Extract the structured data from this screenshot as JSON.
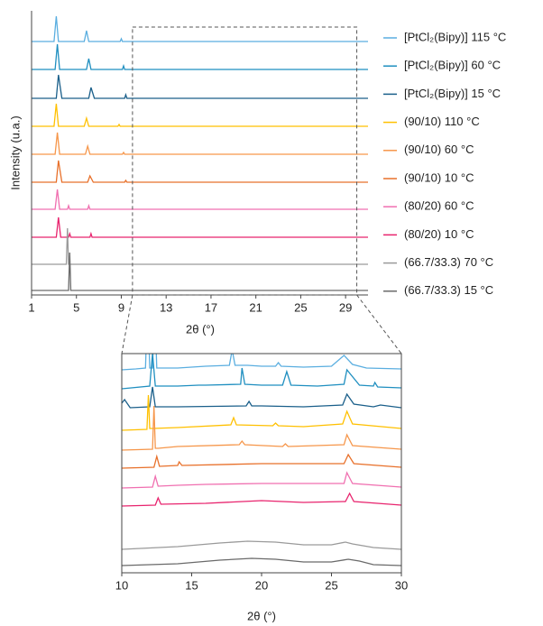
{
  "chart_data": [
    {
      "type": "line",
      "x_label": "2θ (°)",
      "y_label": "Intensity (u.a.)",
      "xlim": [
        1,
        31
      ],
      "xticks": [
        1,
        5,
        9,
        13,
        17,
        21,
        25,
        29
      ],
      "series": [
        {
          "name": "[PtCl₂(Bipy)] 115 °C",
          "color": "#5aaee0",
          "x": [
            1,
            3.0,
            3.2,
            3.4,
            5.7,
            5.9,
            6.1,
            8.9,
            9.0,
            9.1,
            31
          ],
          "values": [
            0,
            0,
            28,
            0,
            0,
            12,
            0,
            0,
            3,
            0,
            0
          ]
        },
        {
          "name": "[PtCl₂(Bipy)] 60 °C",
          "color": "#1f8fc0",
          "x": [
            1,
            3.1,
            3.3,
            3.5,
            5.9,
            6.1,
            6.3,
            9.1,
            9.2,
            9.3,
            31
          ],
          "values": [
            0,
            0,
            28,
            0,
            0,
            12,
            0,
            0,
            4,
            0,
            0
          ]
        },
        {
          "name": "[PtCl₂(Bipy)] 15 °C",
          "color": "#1a5f8a",
          "x": [
            1,
            3.2,
            3.4,
            3.7,
            6.1,
            6.3,
            6.6,
            9.3,
            9.4,
            9.5,
            31
          ],
          "values": [
            0,
            0,
            26,
            0,
            0,
            12,
            0,
            0,
            4,
            0,
            0
          ]
        },
        {
          "name": "(90/10) 110 °C",
          "color": "#ffc000",
          "x": [
            1,
            3.0,
            3.2,
            3.4,
            5.7,
            5.9,
            6.1,
            8.7,
            8.8,
            8.9,
            31
          ],
          "values": [
            0,
            0,
            25,
            0,
            0,
            9,
            0,
            0,
            2,
            0,
            0
          ]
        },
        {
          "name": "(90/10) 60 °C",
          "color": "#f6964a",
          "x": [
            1,
            3.1,
            3.3,
            3.5,
            5.8,
            6.0,
            6.2,
            9.1,
            9.2,
            9.3,
            31
          ],
          "values": [
            0,
            0,
            24,
            0,
            0,
            9,
            0,
            0,
            2,
            0,
            0
          ]
        },
        {
          "name": "(90/10) 10 °C",
          "color": "#e8702a",
          "x": [
            1,
            3.2,
            3.4,
            3.7,
            6.0,
            6.2,
            6.5,
            9.3,
            9.4,
            9.5,
            31
          ],
          "values": [
            0,
            0,
            24,
            0,
            0,
            7,
            0,
            0,
            2,
            0,
            0
          ]
        },
        {
          "name": "(80/20) 60 °C",
          "color": "#f06fb0",
          "x": [
            1,
            3.1,
            3.3,
            3.5,
            4.2,
            4.3,
            4.4,
            6.0,
            6.1,
            6.2,
            31
          ],
          "values": [
            0,
            0,
            22,
            0,
            0,
            4,
            0,
            0,
            4,
            0,
            0
          ]
        },
        {
          "name": "(80/20) 10 °C",
          "color": "#e8246e",
          "x": [
            1,
            3.2,
            3.4,
            3.6,
            4.3,
            4.4,
            4.5,
            6.2,
            6.3,
            6.4,
            31
          ],
          "values": [
            0,
            0,
            22,
            0,
            0,
            4,
            0,
            0,
            4,
            0,
            0
          ]
        },
        {
          "name": "(66.7/33.3) 70 °C",
          "color": "#9a9a9a",
          "x": [
            1,
            4.1,
            4.2,
            4.3,
            31
          ],
          "values": [
            0,
            0,
            40,
            0,
            0
          ]
        },
        {
          "name": "(66.7/33.3) 15 °C",
          "color": "#6a6a6a",
          "x": [
            1,
            4.3,
            4.4,
            4.5,
            31
          ],
          "values": [
            0,
            0,
            42,
            0,
            0
          ]
        }
      ]
    },
    {
      "type": "line",
      "x_label": "2θ (°)",
      "xlim": [
        10,
        30
      ],
      "xticks": [
        10,
        15,
        20,
        25,
        30
      ],
      "series": [
        {
          "color": "#5aaee0",
          "x": [
            10,
            11,
            11.7,
            11.85,
            12,
            12.2,
            12.35,
            12.5,
            14,
            15,
            16,
            17.7,
            17.9,
            18.1,
            19,
            20,
            21,
            21.2,
            21.4,
            23,
            25,
            25.9,
            26.5,
            27.5,
            30
          ],
          "values": [
            2,
            3,
            4,
            80,
            4,
            4,
            80,
            4,
            4,
            5,
            6,
            7,
            24,
            7,
            7,
            6,
            6,
            10,
            6,
            5,
            6,
            18,
            8,
            4,
            3
          ]
        },
        {
          "color": "#1f8fc0",
          "x": [
            10,
            12,
            12.2,
            12.4,
            14,
            15.5,
            16,
            18.5,
            18.6,
            18.8,
            20,
            21.5,
            21.8,
            22.1,
            24,
            25.9,
            26.1,
            27,
            28,
            28.1,
            28.3,
            30
          ],
          "values": [
            1,
            4,
            40,
            4,
            4,
            5,
            5,
            6,
            24,
            6,
            5,
            5,
            20,
            5,
            4,
            6,
            22,
            5,
            4,
            8,
            3,
            2
          ]
        },
        {
          "color": "#1a5f8a",
          "x": [
            10,
            10.2,
            10.6,
            12,
            12.2,
            12.4,
            14,
            18.9,
            19.1,
            19.3,
            20,
            23,
            25.8,
            26.1,
            26.6,
            28,
            28.5,
            30
          ],
          "values": [
            8,
            12,
            3,
            4,
            26,
            4,
            4,
            5,
            10,
            5,
            5,
            4,
            6,
            18,
            7,
            4,
            6,
            3
          ]
        },
        {
          "color": "#ffc000",
          "x": [
            10,
            11.8,
            11.9,
            12,
            12.2,
            14,
            17.8,
            18,
            18.2,
            20.8,
            21,
            21.2,
            23,
            25.8,
            26.1,
            26.5,
            30
          ],
          "values": [
            1,
            2,
            40,
            3,
            3,
            4,
            7,
            15,
            7,
            6,
            9,
            6,
            5,
            8,
            22,
            8,
            3
          ]
        },
        {
          "color": "#f6964a",
          "x": [
            10,
            12.2,
            12.3,
            12.4,
            12.6,
            14,
            18.4,
            18.6,
            18.8,
            21.5,
            21.7,
            21.9,
            25.9,
            26.1,
            26.5,
            30
          ],
          "values": [
            1,
            2,
            50,
            3,
            3,
            5,
            7,
            11,
            7,
            5,
            8,
            5,
            7,
            18,
            6,
            2
          ]
        },
        {
          "color": "#e8702a",
          "x": [
            10,
            12.3,
            12.5,
            12.7,
            14,
            14.1,
            14.3,
            20,
            25.9,
            26.2,
            26.6,
            30
          ],
          "values": [
            1,
            2,
            14,
            3,
            4,
            8,
            4,
            6,
            6,
            16,
            6,
            2
          ]
        },
        {
          "color": "#f06fb0",
          "x": [
            10,
            12.2,
            12.4,
            12.6,
            14,
            16,
            20,
            25.9,
            26.1,
            26.5,
            30
          ],
          "values": [
            1,
            2,
            14,
            3,
            4,
            5,
            6,
            6,
            18,
            6,
            2
          ]
        },
        {
          "color": "#e8246e",
          "x": [
            10,
            12.4,
            12.6,
            12.8,
            16,
            20,
            23,
            26,
            26.3,
            26.6,
            30
          ],
          "values": [
            1,
            2,
            10,
            3,
            4,
            7,
            5,
            6,
            15,
            6,
            2
          ]
        },
        {
          "color": "#9a9a9a",
          "x": [
            10,
            14,
            17,
            19,
            21,
            23,
            25,
            26,
            26.5,
            28,
            30
          ],
          "values": [
            1,
            4,
            8,
            10,
            9,
            6,
            6,
            9,
            7,
            3,
            1
          ]
        },
        {
          "color": "#6a6a6a",
          "x": [
            10,
            14,
            17,
            19.3,
            21,
            23,
            25,
            26.2,
            27,
            28,
            30
          ],
          "values": [
            1,
            3,
            7,
            9,
            8,
            5,
            5,
            8,
            6,
            2,
            1
          ]
        }
      ]
    }
  ]
}
